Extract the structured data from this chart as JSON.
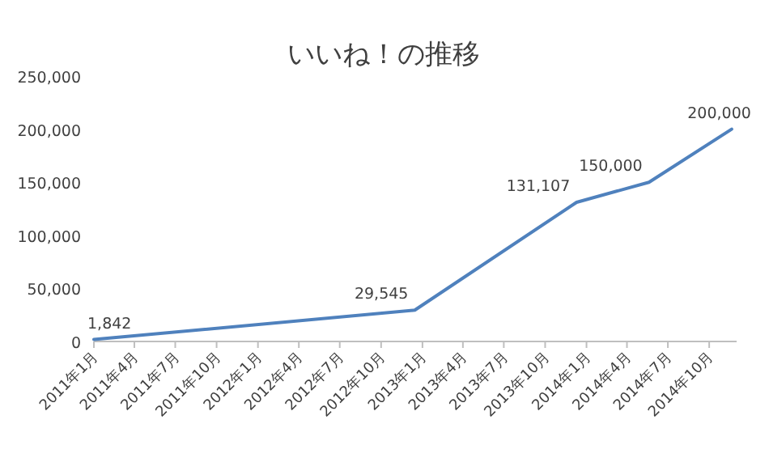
{
  "chart_data": {
    "type": "line",
    "title": "いいね！の推移",
    "x": [
      "2011-01-01",
      "2012-12-15",
      "2013-12-10",
      "2014-05-20",
      "2014-11-20"
    ],
    "series": [
      {
        "color": "#4f81bd",
        "values": [
          1842,
          29545,
          131107,
          150000,
          200000
        ],
        "value_labels": [
          "1,842",
          "29,545",
          "131,107",
          "150,000",
          "200,000"
        ]
      }
    ],
    "marker": "none",
    "line_style": "solid",
    "grid": false,
    "xlim": [
      "2011-01-01",
      "2014-12-01"
    ],
    "xticks": [
      {
        "value": "2011-01-01",
        "label": "2011年1月"
      },
      {
        "value": "2011-04-01",
        "label": "2011年4月"
      },
      {
        "value": "2011-07-01",
        "label": "2011年7月"
      },
      {
        "value": "2011-10-01",
        "label": "2011年10月"
      },
      {
        "value": "2012-01-01",
        "label": "2012年1月"
      },
      {
        "value": "2012-04-01",
        "label": "2012年4月"
      },
      {
        "value": "2012-07-01",
        "label": "2012年7月"
      },
      {
        "value": "2012-10-01",
        "label": "2012年10月"
      },
      {
        "value": "2013-01-01",
        "label": "2013年1月"
      },
      {
        "value": "2013-04-01",
        "label": "2013年4月"
      },
      {
        "value": "2013-07-01",
        "label": "2013年7月"
      },
      {
        "value": "2013-10-01",
        "label": "2013年10月"
      },
      {
        "value": "2014-01-01",
        "label": "2014年1月"
      },
      {
        "value": "2014-04-01",
        "label": "2014年4月"
      },
      {
        "value": "2014-07-01",
        "label": "2014年7月"
      },
      {
        "value": "2014-10-01",
        "label": "2014年10月"
      }
    ],
    "ylim": [
      0,
      250000
    ],
    "yticks": [
      {
        "value": 0,
        "label": "0"
      },
      {
        "value": 50000,
        "label": "50,000"
      },
      {
        "value": 100000,
        "label": "100,000"
      },
      {
        "value": 150000,
        "label": "150,000"
      },
      {
        "value": 200000,
        "label": "200,000"
      },
      {
        "value": 250000,
        "label": "250,000"
      }
    ]
  }
}
